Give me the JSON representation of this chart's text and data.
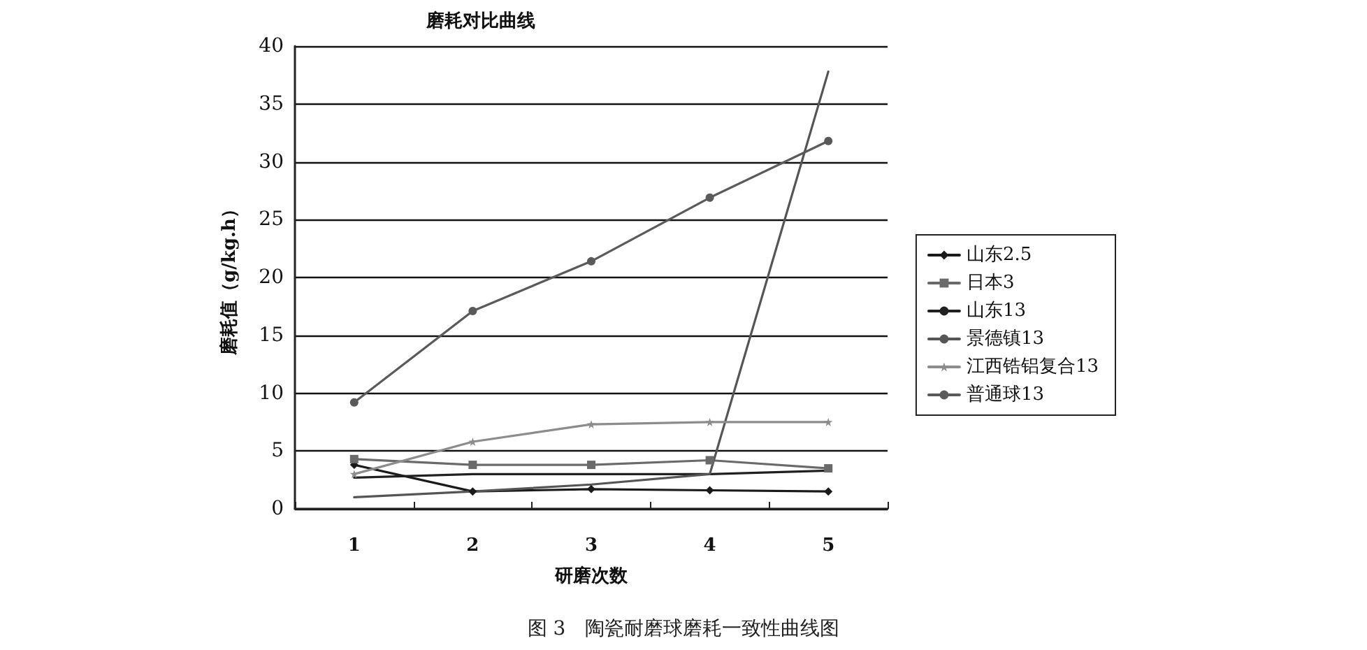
{
  "chart_data": {
    "type": "line",
    "title": "磨耗对比曲线",
    "xlabel": "研磨次数",
    "ylabel": "磨耗值（g/kg.h）",
    "annotations": [
      "图 3　陶瓷耐磨球磨耗一致性曲线图"
    ],
    "categories": [
      "1",
      "2",
      "3",
      "4",
      "5"
    ],
    "ylim": [
      0,
      40
    ],
    "yticks": [
      0,
      5,
      10,
      15,
      20,
      25,
      30,
      35,
      40
    ],
    "grid": "y",
    "legend": "right",
    "series": [
      {
        "name": "山东2.5",
        "color": "#1a1a1a",
        "marker": "diamond",
        "values": [
          3.8,
          1.5,
          1.7,
          1.6,
          1.5
        ]
      },
      {
        "name": "日本3",
        "color": "#6a6a6a",
        "marker": "square",
        "values": [
          4.3,
          3.8,
          3.8,
          4.2,
          3.5
        ]
      },
      {
        "name": "山东13",
        "color": "#202020",
        "marker": "none",
        "values": [
          2.7,
          3.0,
          3.0,
          3.0,
          3.3
        ]
      },
      {
        "name": "景德镇13",
        "color": "#555555",
        "marker": "none",
        "values": [
          1.0,
          1.5,
          2.1,
          3.0,
          37.8
        ]
      },
      {
        "name": "江西锆铝复合13",
        "color": "#8c8c8c",
        "marker": "star",
        "values": [
          3.0,
          5.8,
          7.3,
          7.5,
          7.5
        ]
      },
      {
        "name": "普通球13",
        "color": "#5a5a5a",
        "marker": "circle",
        "values": [
          9.2,
          17.1,
          21.4,
          26.9,
          31.8
        ]
      }
    ]
  }
}
